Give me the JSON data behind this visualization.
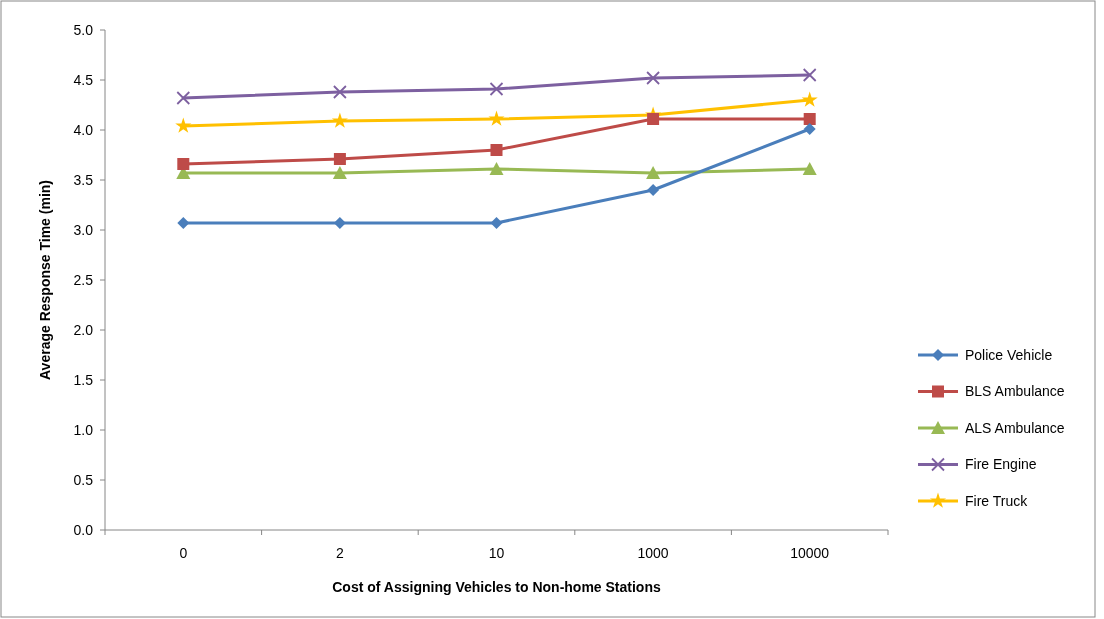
{
  "chart_data": {
    "type": "line",
    "xlabel": "Cost of Assigning Vehicles to Non-home Stations",
    "ylabel": "Average Response Time (min)",
    "categories": [
      "0",
      "2",
      "10",
      "1000",
      "10000"
    ],
    "ylim": [
      0,
      5
    ],
    "yticks": [
      {
        "value": 0,
        "label": "0.0"
      },
      {
        "value": 0.5,
        "label": "0.5"
      },
      {
        "value": 1,
        "label": "1.0"
      },
      {
        "value": 1.5,
        "label": "1.5"
      },
      {
        "value": 2,
        "label": "2.0"
      },
      {
        "value": 2.5,
        "label": "2.5"
      },
      {
        "value": 3,
        "label": "3.0"
      },
      {
        "value": 3.5,
        "label": "3.5"
      },
      {
        "value": 4,
        "label": "4.0"
      },
      {
        "value": 4.5,
        "label": "4.5"
      },
      {
        "value": 5,
        "label": "5.0"
      }
    ],
    "grid": false,
    "legend": "right",
    "series": [
      {
        "name": "Police Vehicle",
        "color": "#4a7ebb",
        "marker": "diamond",
        "values": [
          3.07,
          3.07,
          3.07,
          3.4,
          4.01
        ]
      },
      {
        "name": "BLS Ambulance",
        "color": "#be4b48",
        "marker": "square",
        "values": [
          3.66,
          3.71,
          3.8,
          4.11,
          4.11
        ]
      },
      {
        "name": "ALS Ambulance",
        "color": "#98b954",
        "marker": "triangle",
        "values": [
          3.57,
          3.57,
          3.61,
          3.57,
          3.61
        ]
      },
      {
        "name": "Fire Engine",
        "color": "#7d60a0",
        "marker": "cross",
        "values": [
          4.32,
          4.38,
          4.41,
          4.52,
          4.55
        ]
      },
      {
        "name": "Fire Truck",
        "color": "#ffc000",
        "marker": "star",
        "values": [
          4.04,
          4.09,
          4.11,
          4.15,
          4.3
        ]
      }
    ]
  }
}
